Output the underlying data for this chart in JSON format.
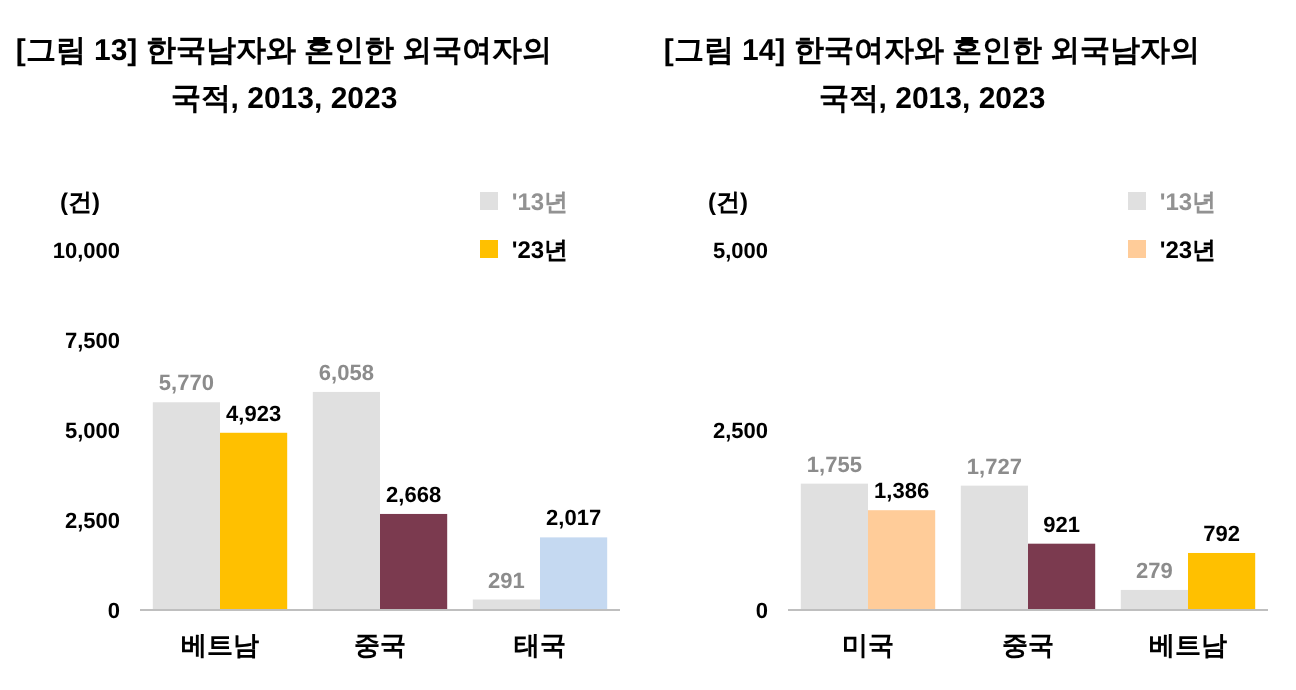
{
  "chart_data": [
    {
      "type": "bar",
      "title": "[그림 13] 한국남자와 혼인한 외국여자의 국적, 2013, 2023",
      "ylabel": "(건)",
      "categories": [
        "베트남",
        "중국",
        "태국"
      ],
      "series": [
        {
          "name": "'13년",
          "color": "#e0e0e0",
          "colors": [
            "#e0e0e0",
            "#e0e0e0",
            "#e0e0e0"
          ],
          "values": [
            5770,
            6058,
            291
          ],
          "value_labels": [
            "5,770",
            "6,058",
            "291"
          ]
        },
        {
          "name": "'23년",
          "color": "#ffc000",
          "colors": [
            "#ffc000",
            "#7b3a4f",
            "#c5d9f1"
          ],
          "values": [
            4923,
            2668,
            2017
          ],
          "value_labels": [
            "4,923",
            "2,668",
            "2,017"
          ]
        }
      ],
      "ylim": [
        0,
        10000
      ],
      "yticks": [
        0,
        {
          "value": 2500,
          "label": "2,500"
        },
        {
          "value": 5000,
          "label": "5,000"
        },
        {
          "value": 7500,
          "label": "7,500"
        },
        {
          "value": 10000,
          "label": "10,000"
        }
      ],
      "legend": "top right"
    },
    {
      "type": "bar",
      "title": "[그림 14] 한국여자와 혼인한 외국남자의 국적, 2013, 2023",
      "ylabel": "(건)",
      "categories": [
        "미국",
        "중국",
        "베트남"
      ],
      "series": [
        {
          "name": "'13년",
          "color": "#e0e0e0",
          "colors": [
            "#e0e0e0",
            "#e0e0e0",
            "#e0e0e0"
          ],
          "values": [
            1755,
            1727,
            279
          ],
          "value_labels": [
            "1,755",
            "1,727",
            "279"
          ]
        },
        {
          "name": "'23년",
          "color": "#ffcc99",
          "colors": [
            "#ffcc99",
            "#7b3a4f",
            "#ffc000"
          ],
          "values": [
            1386,
            921,
            792
          ],
          "value_labels": [
            "1,386",
            "921",
            "792"
          ]
        }
      ],
      "ylim": [
        0,
        5000
      ],
      "yticks": [
        0,
        {
          "value": 2500,
          "label": "2,500"
        },
        {
          "value": 5000,
          "label": "5,000"
        }
      ],
      "legend": "top right"
    }
  ]
}
